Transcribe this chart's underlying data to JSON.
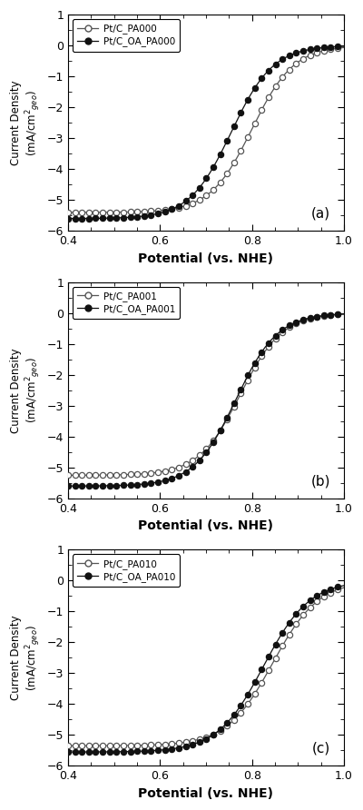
{
  "panels": [
    {
      "label": "(a)",
      "legend1": "Pt/C_PA000",
      "legend2": "Pt/C_OA_PA000",
      "ilim1": -5.4,
      "ilim2": -5.6,
      "E_half1": 0.8,
      "E_half2": 0.755,
      "n1": 22,
      "n2": 22,
      "ylim": [
        -6,
        1
      ],
      "yticks": [
        -6,
        -5,
        -4,
        -3,
        -2,
        -1,
        0,
        1
      ]
    },
    {
      "label": "(b)",
      "legend1": "Pt/C_PA001",
      "legend2": "Pt/C_OA_PA001",
      "ilim1": -5.25,
      "ilim2": -5.6,
      "E_half1": 0.775,
      "E_half2": 0.765,
      "n1": 22,
      "n2": 22,
      "ylim": [
        -6,
        1
      ],
      "yticks": [
        -6,
        -5,
        -4,
        -3,
        -2,
        -1,
        0,
        1
      ]
    },
    {
      "label": "(c)",
      "legend1": "Pt/C_PA010",
      "legend2": "Pt/C_OA_PA010",
      "ilim1": -5.35,
      "ilim2": -5.55,
      "E_half1": 0.845,
      "E_half2": 0.825,
      "n1": 20,
      "n2": 20,
      "ylim": [
        -6,
        1
      ],
      "yticks": [
        -6,
        -5,
        -4,
        -3,
        -2,
        -1,
        0,
        1
      ]
    }
  ],
  "xlim": [
    0.4,
    1.0
  ],
  "xticks": [
    0.4,
    0.6,
    0.8,
    1.0
  ],
  "xlabel": "Potential (vs. NHE)",
  "line_color_open": "#555555",
  "line_color_filled": "#111111",
  "bg_color": "#ffffff"
}
